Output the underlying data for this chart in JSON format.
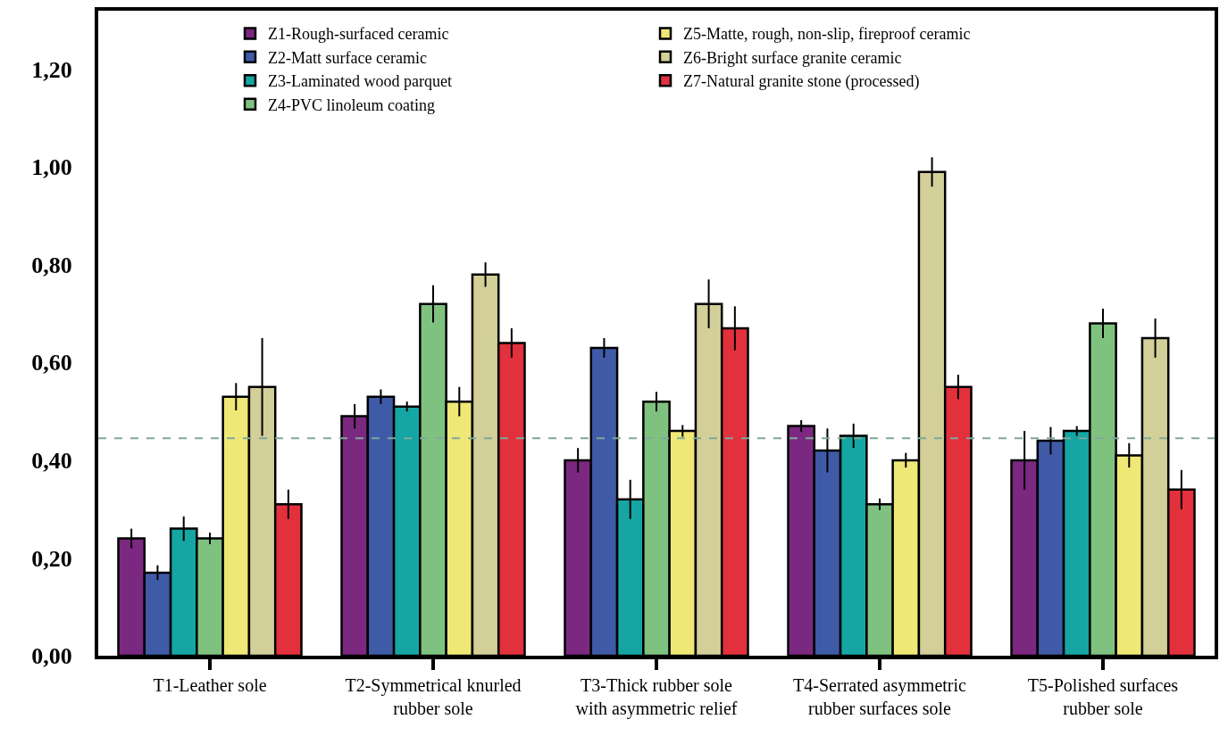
{
  "chart_data": {
    "type": "bar",
    "categories": [
      "T1-Leather sole",
      "T2-Symmetrical knurled\nrubber sole",
      "T3-Thick rubber sole\nwith asymmetric relief",
      "T4-Serrated asymmetric\nrubber surfaces sole",
      "T5-Polished surfaces\nrubber sole"
    ],
    "series": [
      {
        "name": "Z1-Rough-surfaced ceramic",
        "color": "#7b2880",
        "values": [
          0.24,
          0.49,
          0.4,
          0.47,
          0.4
        ],
        "errors": [
          0.02,
          0.025,
          0.025,
          0.012,
          0.06
        ]
      },
      {
        "name": "Z2-Matt surface ceramic",
        "color": "#3f5ba8",
        "values": [
          0.17,
          0.53,
          0.63,
          0.42,
          0.44
        ],
        "errors": [
          0.015,
          0.015,
          0.02,
          0.045,
          0.028
        ]
      },
      {
        "name": "Z3-Laminated wood parquet",
        "color": "#15a6a3",
        "values": [
          0.26,
          0.51,
          0.32,
          0.45,
          0.46
        ],
        "errors": [
          0.025,
          0.01,
          0.04,
          0.025,
          0.01
        ]
      },
      {
        "name": "Z4-PVC linoleum coating",
        "color": "#7fc280",
        "values": [
          0.24,
          0.72,
          0.52,
          0.31,
          0.68
        ],
        "errors": [
          0.012,
          0.038,
          0.02,
          0.012,
          0.03
        ]
      },
      {
        "name": "Z5-Matte, rough, non-slip, fireproof ceramic",
        "color": "#efe877",
        "values": [
          0.53,
          0.52,
          0.46,
          0.4,
          0.41
        ],
        "errors": [
          0.028,
          0.03,
          0.012,
          0.015,
          0.025
        ]
      },
      {
        "name": "Z6-Bright surface granite ceramic",
        "color": "#d3cf98",
        "values": [
          0.55,
          0.78,
          0.72,
          0.99,
          0.65
        ],
        "errors": [
          0.1,
          0.025,
          0.05,
          0.03,
          0.04
        ]
      },
      {
        "name": "Z7-Natural granite stone (processed)",
        "color": "#e2313c",
        "values": [
          0.31,
          0.64,
          0.67,
          0.55,
          0.34
        ],
        "errors": [
          0.03,
          0.03,
          0.045,
          0.025,
          0.04
        ]
      }
    ],
    "ylim": [
      0,
      1.32
    ],
    "yticks": [
      {
        "value": 0,
        "label": "0,00"
      },
      {
        "value": 0.2,
        "label": "0,20"
      },
      {
        "value": 0.4,
        "label": "0,40"
      },
      {
        "value": 0.6,
        "label": "0,60"
      },
      {
        "value": 0.8,
        "label": "0,80"
      },
      {
        "value": 1.0,
        "label": "1,00"
      },
      {
        "value": 1.2,
        "label": "1,20"
      }
    ],
    "ref_lines": [
      {
        "axis": "y",
        "value": 0.445,
        "color": "#7fa89a",
        "line_style": "dashed"
      }
    ],
    "grid": false,
    "legend": "top"
  }
}
